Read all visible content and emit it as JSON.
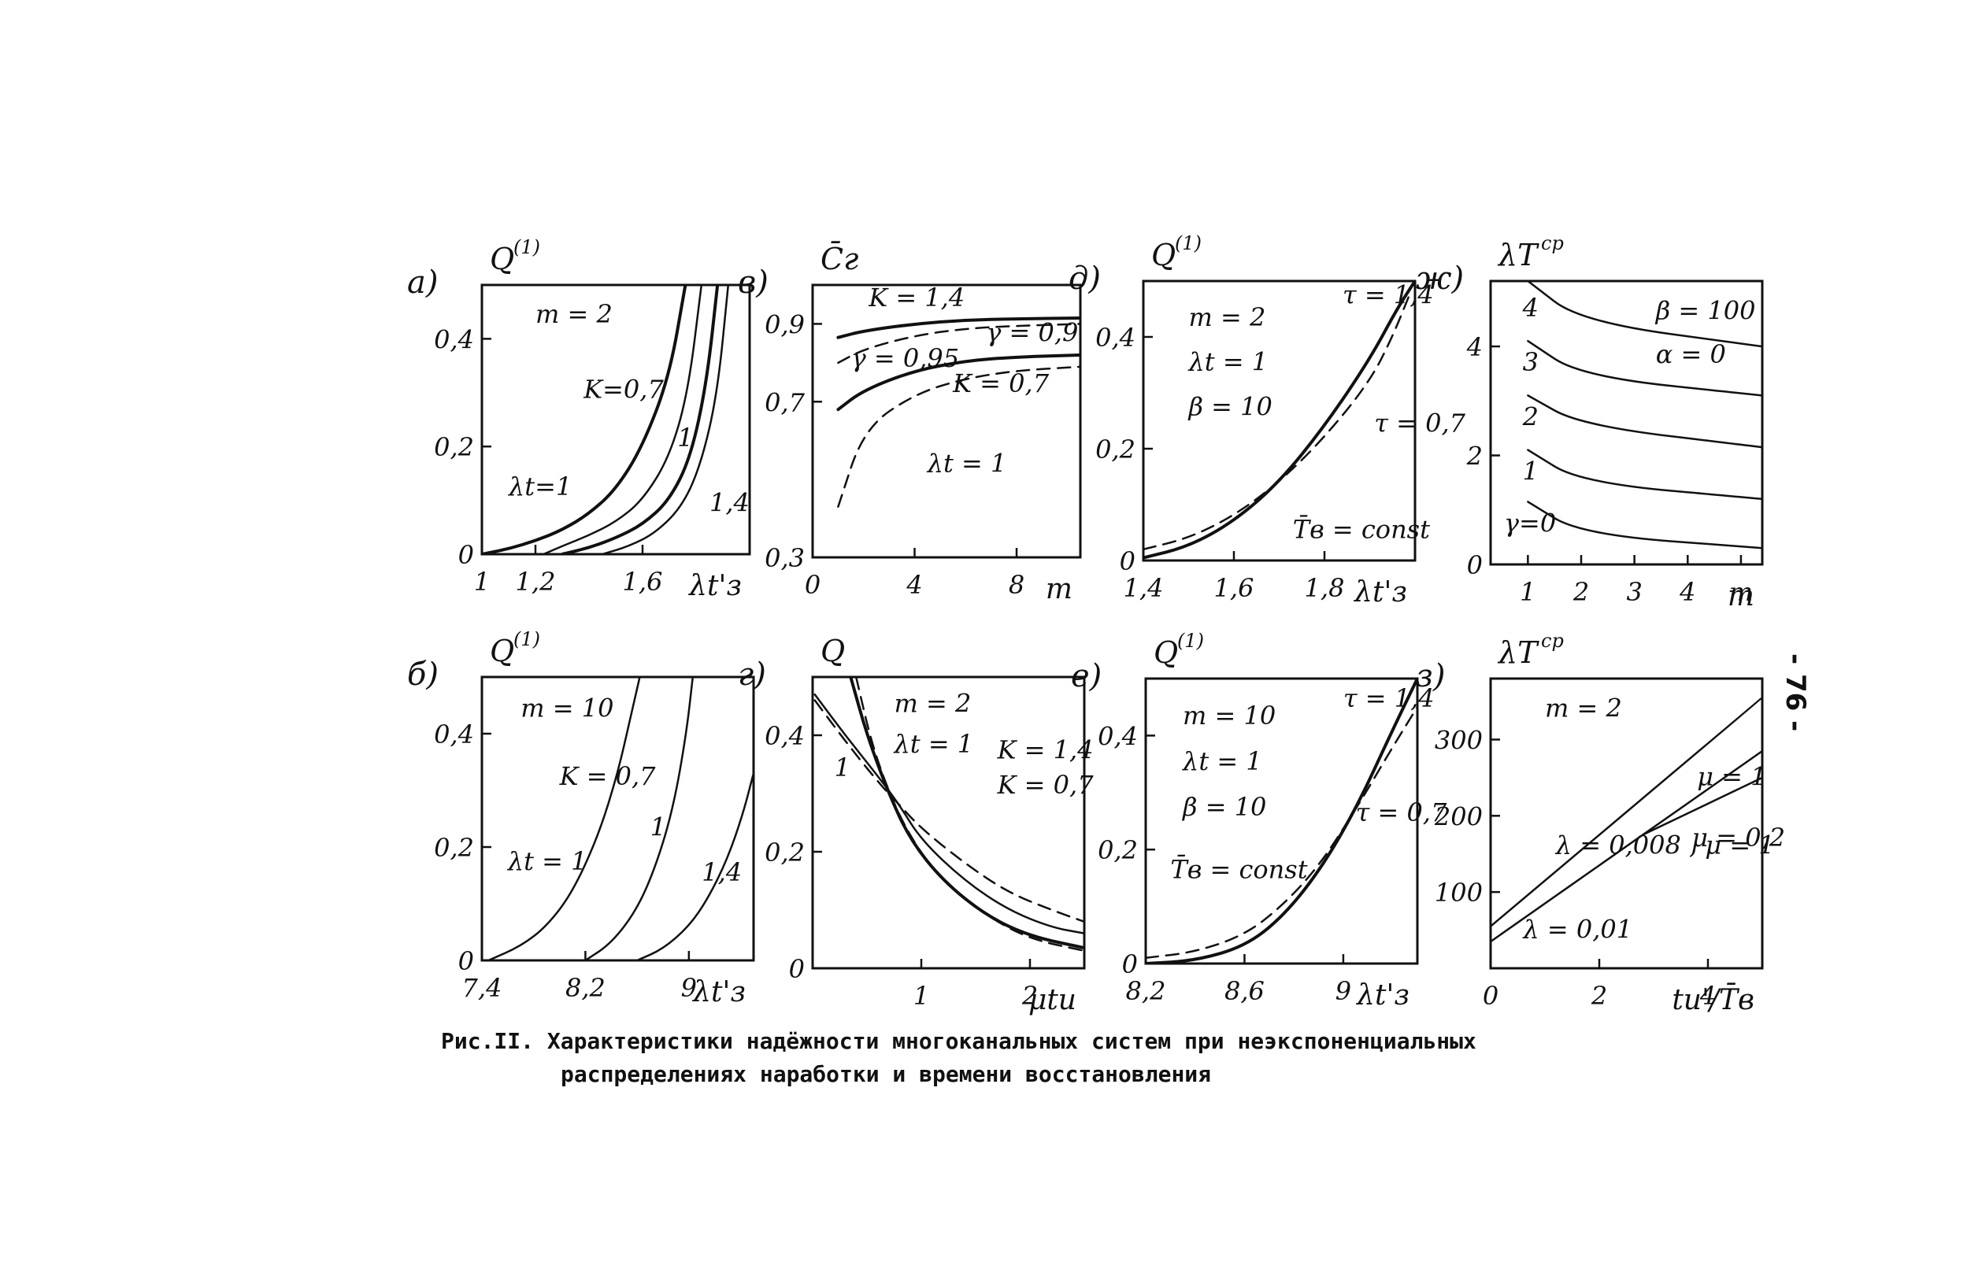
{
  "figure": {
    "caption_line1": "Рис.II. Характеристики надёжности многоканальных систем при неэкспоненциальных",
    "caption_line2": "распределениях наработки и времени восстановления",
    "page_number": "- 76 -"
  },
  "chart_data": [
    {
      "id": "a",
      "panel_label": "а)",
      "type": "line",
      "ylabel": "Q",
      "ylabel_sup": "(1)",
      "xlabel": "λt'з",
      "xlim": [
        1,
        2
      ],
      "ylim": [
        0,
        0.5
      ],
      "xticks": [
        {
          "v": 1,
          "t": "1"
        },
        {
          "v": 1.2,
          "t": "1,2"
        },
        {
          "v": 1.6,
          "t": "1,6"
        }
      ],
      "yticks": [
        {
          "v": 0,
          "t": "0"
        },
        {
          "v": 0.2,
          "t": "0,2"
        },
        {
          "v": 0.4,
          "t": "0,4"
        }
      ],
      "annotations": [
        {
          "t": "m = 2",
          "x": 1.2,
          "y": 0.43
        },
        {
          "t": "K=0,7",
          "x": 1.38,
          "y": 0.29
        },
        {
          "t": "1",
          "x": 1.73,
          "y": 0.2
        },
        {
          "t": "1,4",
          "x": 1.85,
          "y": 0.08
        },
        {
          "t": "λt=1",
          "x": 1.1,
          "y": 0.11
        }
      ],
      "series": [
        {
          "style": "solid",
          "width": 4,
          "x": [
            1.0,
            1.1,
            1.2,
            1.3,
            1.4,
            1.5,
            1.6,
            1.7,
            1.76
          ],
          "y": [
            0.0,
            0.01,
            0.025,
            0.045,
            0.075,
            0.12,
            0.2,
            0.33,
            0.5
          ]
        },
        {
          "style": "solid",
          "width": 2.5,
          "x": [
            1.23,
            1.3,
            1.4,
            1.5,
            1.6,
            1.7,
            1.77,
            1.82
          ],
          "y": [
            0.0,
            0.015,
            0.035,
            0.06,
            0.1,
            0.18,
            0.3,
            0.5
          ]
        },
        {
          "style": "solid",
          "width": 4,
          "x": [
            1.3,
            1.4,
            1.5,
            1.6,
            1.7,
            1.78,
            1.84,
            1.88
          ],
          "y": [
            0.0,
            0.012,
            0.03,
            0.055,
            0.1,
            0.18,
            0.32,
            0.5
          ]
        },
        {
          "style": "solid",
          "width": 2.5,
          "x": [
            1.45,
            1.55,
            1.65,
            1.75,
            1.82,
            1.88,
            1.92
          ],
          "y": [
            0.0,
            0.015,
            0.04,
            0.09,
            0.17,
            0.3,
            0.5
          ]
        }
      ]
    },
    {
      "id": "v",
      "panel_label": "в)",
      "type": "line",
      "ylabel": "C̄г",
      "ylabel_sup": "",
      "xlabel": "m",
      "xlim": [
        0,
        10.5
      ],
      "ylim": [
        0.3,
        1.0
      ],
      "xticks": [
        {
          "v": 0,
          "t": "0"
        },
        {
          "v": 4,
          "t": "4"
        },
        {
          "v": 8,
          "t": "8"
        }
      ],
      "yticks": [
        {
          "v": 0.3,
          "t": "0,3"
        },
        {
          "v": 0.7,
          "t": "0,7"
        },
        {
          "v": 0.9,
          "t": "0,9"
        }
      ],
      "annotations": [
        {
          "t": "K = 1,4",
          "x": 2.2,
          "y": 0.945
        },
        {
          "t": "γ = 0,9",
          "x": 6.8,
          "y": 0.855
        },
        {
          "t": "γ = 0,95",
          "x": 1.5,
          "y": 0.79
        },
        {
          "t": "K = 0,7",
          "x": 5.5,
          "y": 0.725
        },
        {
          "t": "λt = 1",
          "x": 4.5,
          "y": 0.52
        }
      ],
      "series": [
        {
          "style": "solid",
          "width": 4,
          "x": [
            1,
            2,
            4,
            6,
            8,
            10.5
          ],
          "y": [
            0.865,
            0.882,
            0.9,
            0.91,
            0.913,
            0.915
          ]
        },
        {
          "style": "dashed",
          "width": 2.5,
          "x": [
            1,
            2,
            4,
            6,
            8,
            10.5
          ],
          "y": [
            0.8,
            0.835,
            0.87,
            0.888,
            0.895,
            0.9
          ]
        },
        {
          "style": "solid",
          "width": 4,
          "x": [
            1,
            2,
            4,
            6,
            8,
            10.5
          ],
          "y": [
            0.68,
            0.73,
            0.78,
            0.805,
            0.815,
            0.82
          ]
        },
        {
          "style": "dashed",
          "width": 2.5,
          "x": [
            1,
            2,
            4,
            6,
            8,
            10.5
          ],
          "y": [
            0.43,
            0.63,
            0.72,
            0.76,
            0.78,
            0.79
          ]
        }
      ]
    },
    {
      "id": "d",
      "panel_label": "д)",
      "type": "line",
      "ylabel": "Q",
      "ylabel_sup": "(1)",
      "xlabel": "λt'з",
      "xlim": [
        1.4,
        2.0
      ],
      "ylim": [
        0,
        0.5
      ],
      "xticks": [
        {
          "v": 1.4,
          "t": "1,4"
        },
        {
          "v": 1.6,
          "t": "1,6"
        },
        {
          "v": 1.8,
          "t": "1,8"
        }
      ],
      "yticks": [
        {
          "v": 0,
          "t": "0"
        },
        {
          "v": 0.2,
          "t": "0,2"
        },
        {
          "v": 0.4,
          "t": "0,4"
        }
      ],
      "annotations": [
        {
          "t": "m = 2",
          "x": 1.5,
          "y": 0.42
        },
        {
          "t": "λt = 1",
          "x": 1.5,
          "y": 0.34
        },
        {
          "t": "β = 10",
          "x": 1.5,
          "y": 0.26
        },
        {
          "t": "τ = 1,4",
          "x": 1.84,
          "y": 0.46
        },
        {
          "t": "τ = 0,7",
          "x": 1.91,
          "y": 0.23
        },
        {
          "t": "T̄в = const",
          "x": 1.73,
          "y": 0.04
        }
      ],
      "series": [
        {
          "style": "solid",
          "width": 4,
          "x": [
            1.4,
            1.5,
            1.6,
            1.7,
            1.8,
            1.9,
            1.96,
            2.0
          ],
          "y": [
            0.005,
            0.025,
            0.07,
            0.14,
            0.24,
            0.36,
            0.45,
            0.5
          ]
        },
        {
          "style": "dashed",
          "width": 2.5,
          "x": [
            1.4,
            1.5,
            1.6,
            1.7,
            1.8,
            1.9,
            1.95,
            1.99
          ],
          "y": [
            0.02,
            0.04,
            0.08,
            0.14,
            0.22,
            0.32,
            0.4,
            0.48
          ]
        }
      ]
    },
    {
      "id": "zh",
      "panel_label": "ж)",
      "type": "line",
      "ylabel": "λT",
      "ylabel_sup": "ср",
      "xlabel": "m",
      "xlim": [
        0.3,
        5.4
      ],
      "ylim": [
        0,
        5.2
      ],
      "xticks": [
        {
          "v": 1,
          "t": "1"
        },
        {
          "v": 2,
          "t": "2"
        },
        {
          "v": 3,
          "t": "3"
        },
        {
          "v": 4,
          "t": "4"
        },
        {
          "v": 5,
          "t": "m"
        }
      ],
      "yticks": [
        {
          "v": 0,
          "t": "0"
        },
        {
          "v": 2,
          "t": "2"
        },
        {
          "v": 4,
          "t": "4"
        }
      ],
      "annotations": [
        {
          "t": "β = 100",
          "x": 3.4,
          "y": 4.5
        },
        {
          "t": "α = 0",
          "x": 3.4,
          "y": 3.7
        },
        {
          "t": "4",
          "x": 0.9,
          "y": 4.55
        },
        {
          "t": "3",
          "x": 0.9,
          "y": 3.55
        },
        {
          "t": "2",
          "x": 0.9,
          "y": 2.55
        },
        {
          "t": "1",
          "x": 0.9,
          "y": 1.55
        },
        {
          "t": "γ=0",
          "x": 0.55,
          "y": 0.6
        }
      ],
      "series": [
        {
          "style": "solid",
          "width": 2.5,
          "x": [
            1,
            2,
            5.4
          ],
          "y": [
            5.2,
            4.45,
            4.0
          ]
        },
        {
          "style": "solid",
          "width": 2.5,
          "x": [
            1,
            2,
            5.4
          ],
          "y": [
            4.1,
            3.45,
            3.1
          ]
        },
        {
          "style": "solid",
          "width": 2.5,
          "x": [
            1,
            2,
            5.4
          ],
          "y": [
            3.1,
            2.55,
            2.15
          ]
        },
        {
          "style": "solid",
          "width": 2.5,
          "x": [
            1,
            2,
            5.4
          ],
          "y": [
            2.1,
            1.5,
            1.2
          ]
        },
        {
          "style": "solid",
          "width": 2.5,
          "x": [
            1,
            2,
            5.4
          ],
          "y": [
            1.15,
            0.55,
            0.3
          ]
        }
      ]
    },
    {
      "id": "b",
      "panel_label": "б)",
      "type": "line",
      "ylabel": "Q",
      "ylabel_sup": "(1)",
      "xlabel": "λt'з",
      "xlim": [
        7.4,
        9.5
      ],
      "ylim": [
        0,
        0.5
      ],
      "xticks": [
        {
          "v": 7.4,
          "t": "7,4"
        },
        {
          "v": 8.2,
          "t": "8,2"
        },
        {
          "v": 9,
          "t": "9"
        }
      ],
      "yticks": [
        {
          "v": 0,
          "t": "0"
        },
        {
          "v": 0.2,
          "t": "0,2"
        },
        {
          "v": 0.4,
          "t": "0,4"
        }
      ],
      "annotations": [
        {
          "t": "m = 10",
          "x": 7.7,
          "y": 0.43
        },
        {
          "t": "K = 0,7",
          "x": 8.0,
          "y": 0.31
        },
        {
          "t": "1",
          "x": 8.7,
          "y": 0.22
        },
        {
          "t": "1,4",
          "x": 9.1,
          "y": 0.14
        },
        {
          "t": "λt = 1",
          "x": 7.6,
          "y": 0.16
        }
      ],
      "series": [
        {
          "style": "solid",
          "width": 2.5,
          "x": [
            7.45,
            7.7,
            7.9,
            8.1,
            8.3,
            8.45,
            8.55,
            8.62
          ],
          "y": [
            0.0,
            0.025,
            0.06,
            0.12,
            0.22,
            0.33,
            0.43,
            0.5
          ]
        },
        {
          "style": "solid",
          "width": 2.5,
          "x": [
            8.2,
            8.4,
            8.6,
            8.75,
            8.88,
            8.98,
            9.03
          ],
          "y": [
            0.0,
            0.03,
            0.09,
            0.17,
            0.27,
            0.4,
            0.5
          ]
        },
        {
          "style": "solid",
          "width": 2.5,
          "x": [
            8.6,
            8.8,
            9.0,
            9.15,
            9.3,
            9.42,
            9.5
          ],
          "y": [
            0.0,
            0.02,
            0.06,
            0.11,
            0.18,
            0.26,
            0.33
          ]
        }
      ]
    },
    {
      "id": "g",
      "panel_label": "г)",
      "type": "line",
      "ylabel": "Q",
      "ylabel_sup": "",
      "xlabel": "μtи",
      "xlim": [
        0,
        2.5
      ],
      "ylim": [
        0,
        0.5
      ],
      "xticks": [
        {
          "v": 1,
          "t": "1"
        },
        {
          "v": 2,
          "t": "2"
        }
      ],
      "yticks": [
        {
          "v": 0,
          "t": "0"
        },
        {
          "v": 0.2,
          "t": "0,2"
        },
        {
          "v": 0.4,
          "t": "0,4"
        }
      ],
      "annotations": [
        {
          "t": "m = 2",
          "x": 0.75,
          "y": 0.44
        },
        {
          "t": "λt = 1",
          "x": 0.75,
          "y": 0.37
        },
        {
          "t": "K = 1,4",
          "x": 1.7,
          "y": 0.36
        },
        {
          "t": "K = 0,7",
          "x": 1.7,
          "y": 0.3
        },
        {
          "t": "1",
          "x": 0.2,
          "y": 0.33
        }
      ],
      "series": [
        {
          "style": "solid",
          "width": 2.5,
          "x": [
            0.02,
            0.3,
            0.6,
            0.8,
            1.0,
            1.4,
            1.8,
            2.2,
            2.5
          ],
          "y": [
            0.47,
            0.4,
            0.33,
            0.28,
            0.22,
            0.15,
            0.1,
            0.07,
            0.06
          ]
        },
        {
          "style": "dashed",
          "width": 2.5,
          "x": [
            0.02,
            0.3,
            0.6,
            0.8,
            1.0,
            1.4,
            1.8,
            2.2,
            2.5
          ],
          "y": [
            0.46,
            0.39,
            0.32,
            0.28,
            0.24,
            0.18,
            0.13,
            0.1,
            0.08
          ]
        },
        {
          "style": "solid",
          "width": 4,
          "x": [
            0.35,
            0.5,
            0.7,
            0.9,
            1.2,
            1.6,
            2.0,
            2.5
          ],
          "y": [
            0.5,
            0.4,
            0.3,
            0.22,
            0.15,
            0.09,
            0.055,
            0.035
          ]
        },
        {
          "style": "dashed",
          "width": 2.5,
          "x": [
            0.4,
            0.55,
            0.75,
            0.95,
            1.2,
            1.6,
            2.0,
            2.5
          ],
          "y": [
            0.5,
            0.38,
            0.28,
            0.21,
            0.15,
            0.09,
            0.05,
            0.03
          ]
        }
      ]
    },
    {
      "id": "e",
      "panel_label": "е)",
      "type": "line",
      "ylabel": "Q",
      "ylabel_sup": "(1)",
      "xlabel": "λt'з",
      "xlim": [
        8.2,
        9.3
      ],
      "ylim": [
        0,
        0.5
      ],
      "xticks": [
        {
          "v": 8.2,
          "t": "8,2"
        },
        {
          "v": 8.6,
          "t": "8,6"
        },
        {
          "v": 9,
          "t": "9"
        }
      ],
      "yticks": [
        {
          "v": 0,
          "t": "0"
        },
        {
          "v": 0.2,
          "t": "0,2"
        },
        {
          "v": 0.4,
          "t": "0,4"
        }
      ],
      "annotations": [
        {
          "t": "m = 10",
          "x": 8.35,
          "y": 0.42
        },
        {
          "t": "λt = 1",
          "x": 8.35,
          "y": 0.34
        },
        {
          "t": "β = 10",
          "x": 8.35,
          "y": 0.26
        },
        {
          "t": "T̄в = const",
          "x": 8.3,
          "y": 0.15
        },
        {
          "t": "τ = 1,4",
          "x": 9.0,
          "y": 0.45
        },
        {
          "t": "τ = 0,7",
          "x": 9.05,
          "y": 0.25
        }
      ],
      "series": [
        {
          "style": "solid",
          "width": 4,
          "x": [
            8.2,
            8.4,
            8.6,
            8.75,
            8.9,
            9.05,
            9.2,
            9.3
          ],
          "y": [
            0.0,
            0.005,
            0.03,
            0.08,
            0.16,
            0.27,
            0.41,
            0.5
          ]
        },
        {
          "style": "dashed",
          "width": 2.5,
          "x": [
            8.2,
            8.4,
            8.6,
            8.75,
            8.9,
            9.05,
            9.2,
            9.3
          ],
          "y": [
            0.01,
            0.02,
            0.05,
            0.1,
            0.17,
            0.27,
            0.38,
            0.45
          ]
        }
      ]
    },
    {
      "id": "z",
      "panel_label": "з)",
      "type": "line",
      "ylabel": "λT",
      "ylabel_sup": "ср",
      "xlabel": "tи'/T̄в",
      "xlim": [
        0,
        5
      ],
      "ylim": [
        0,
        380
      ],
      "xticks": [
        {
          "v": 0,
          "t": "0"
        },
        {
          "v": 2,
          "t": "2"
        },
        {
          "v": 4,
          "t": "4"
        }
      ],
      "yticks": [
        {
          "v": 100,
          "t": "100"
        },
        {
          "v": 200,
          "t": "200"
        },
        {
          "v": 300,
          "t": "300"
        }
      ],
      "annotations": [
        {
          "t": "m = 2",
          "x": 1.0,
          "y": 330
        },
        {
          "t": "λ = 0,008 , μ = 1",
          "x": 1.2,
          "y": 150
        },
        {
          "t": "λ = 0,01",
          "x": 0.6,
          "y": 40
        },
        {
          "t": "μ = 1",
          "x": 3.8,
          "y": 240
        },
        {
          "t": "μ = 0,2",
          "x": 3.7,
          "y": 160
        }
      ],
      "series": [
        {
          "style": "solid",
          "width": 2.5,
          "x": [
            0,
            5
          ],
          "y": [
            55,
            355
          ]
        },
        {
          "style": "solid",
          "width": 2.5,
          "x": [
            0,
            2.8,
            5
          ],
          "y": [
            35,
            175,
            285
          ]
        },
        {
          "style": "solid",
          "width": 2.5,
          "x": [
            2.8,
            5
          ],
          "y": [
            175,
            250
          ]
        }
      ]
    }
  ]
}
